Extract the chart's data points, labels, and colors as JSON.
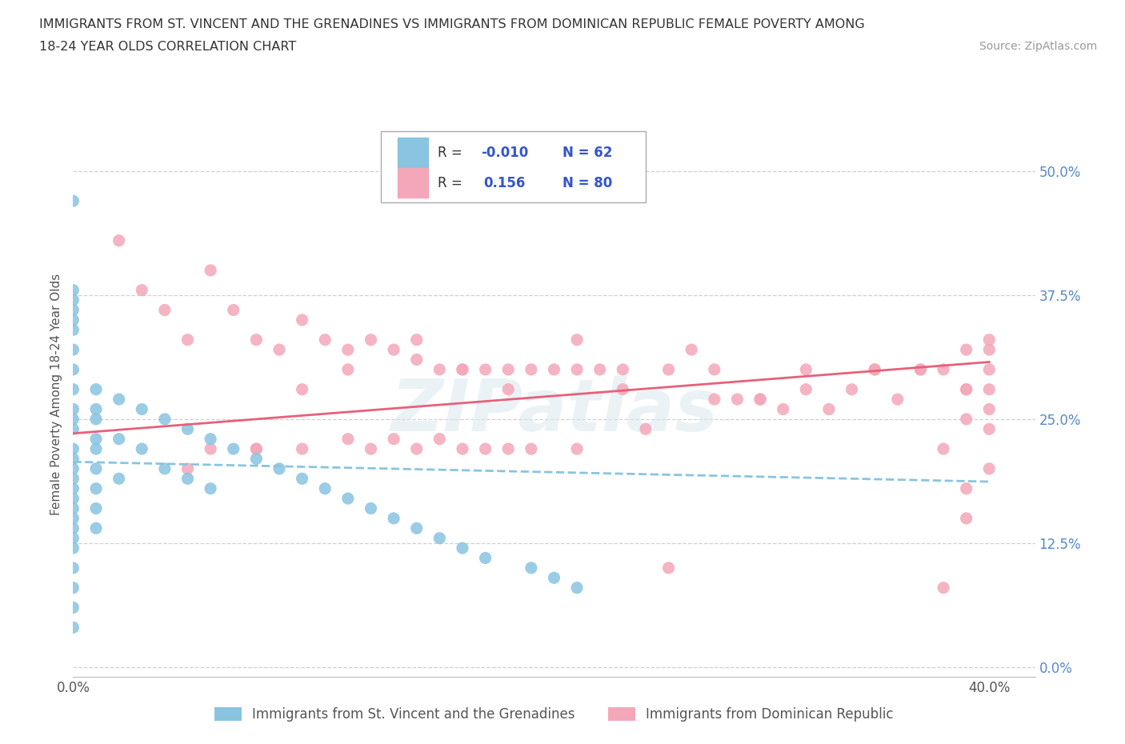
{
  "title_line1": "IMMIGRANTS FROM ST. VINCENT AND THE GRENADINES VS IMMIGRANTS FROM DOMINICAN REPUBLIC FEMALE POVERTY AMONG",
  "title_line2": "18-24 YEAR OLDS CORRELATION CHART",
  "source": "Source: ZipAtlas.com",
  "ylabel": "Female Poverty Among 18-24 Year Olds",
  "xlim": [
    0.0,
    0.42
  ],
  "ylim": [
    -0.01,
    0.56
  ],
  "ytick_positions": [
    0.0,
    0.125,
    0.25,
    0.375,
    0.5
  ],
  "yticklabels": [
    "0.0%",
    "12.5%",
    "25.0%",
    "37.5%",
    "50.0%"
  ],
  "xtick_positions": [
    0.0,
    0.4
  ],
  "xticklabels": [
    "0.0%",
    "40.0%"
  ],
  "watermark": "ZIPatlas",
  "color_blue": "#89c4e1",
  "color_pink": "#f4a7b9",
  "color_blue_line": "#89c4e1",
  "color_pink_line": "#e8607a",
  "grid_color": "#d0d0d0",
  "background_color": "#ffffff",
  "series1_label": "Immigrants from St. Vincent and the Grenadines",
  "series2_label": "Immigrants from Dominican Republic",
  "sv_x": [
    0.0,
    0.0,
    0.0,
    0.0,
    0.0,
    0.0,
    0.0,
    0.0,
    0.0,
    0.0,
    0.0,
    0.0,
    0.0,
    0.0,
    0.0,
    0.0,
    0.0,
    0.0,
    0.0,
    0.0,
    0.0,
    0.0,
    0.0,
    0.0,
    0.0,
    0.0,
    0.0,
    0.01,
    0.01,
    0.01,
    0.01,
    0.01,
    0.01,
    0.01,
    0.01,
    0.01,
    0.02,
    0.02,
    0.02,
    0.03,
    0.03,
    0.04,
    0.04,
    0.05,
    0.05,
    0.06,
    0.06,
    0.07,
    0.08,
    0.09,
    0.1,
    0.11,
    0.12,
    0.13,
    0.14,
    0.15,
    0.16,
    0.17,
    0.18,
    0.2,
    0.21,
    0.22
  ],
  "sv_y": [
    0.47,
    0.38,
    0.37,
    0.36,
    0.35,
    0.34,
    0.32,
    0.3,
    0.28,
    0.26,
    0.25,
    0.24,
    0.22,
    0.21,
    0.2,
    0.19,
    0.18,
    0.17,
    0.16,
    0.15,
    0.14,
    0.13,
    0.12,
    0.1,
    0.08,
    0.06,
    0.04,
    0.28,
    0.26,
    0.25,
    0.23,
    0.22,
    0.2,
    0.18,
    0.16,
    0.14,
    0.27,
    0.23,
    0.19,
    0.26,
    0.22,
    0.25,
    0.2,
    0.24,
    0.19,
    0.23,
    0.18,
    0.22,
    0.21,
    0.2,
    0.19,
    0.18,
    0.17,
    0.16,
    0.15,
    0.14,
    0.13,
    0.12,
    0.11,
    0.1,
    0.09,
    0.08
  ],
  "dr_x": [
    0.02,
    0.03,
    0.04,
    0.05,
    0.06,
    0.06,
    0.07,
    0.08,
    0.08,
    0.09,
    0.1,
    0.1,
    0.11,
    0.12,
    0.12,
    0.13,
    0.13,
    0.14,
    0.14,
    0.15,
    0.15,
    0.16,
    0.16,
    0.17,
    0.17,
    0.18,
    0.18,
    0.19,
    0.19,
    0.2,
    0.2,
    0.21,
    0.22,
    0.22,
    0.23,
    0.24,
    0.25,
    0.26,
    0.27,
    0.28,
    0.29,
    0.3,
    0.31,
    0.32,
    0.33,
    0.34,
    0.35,
    0.36,
    0.37,
    0.38,
    0.38,
    0.38,
    0.39,
    0.39,
    0.39,
    0.39,
    0.4,
    0.4,
    0.4,
    0.4,
    0.4,
    0.4,
    0.05,
    0.08,
    0.1,
    0.12,
    0.15,
    0.17,
    0.19,
    0.22,
    0.24,
    0.26,
    0.28,
    0.3,
    0.32,
    0.35,
    0.37,
    0.39,
    0.39,
    0.4
  ],
  "dr_y": [
    0.43,
    0.38,
    0.36,
    0.33,
    0.4,
    0.22,
    0.36,
    0.33,
    0.22,
    0.32,
    0.35,
    0.22,
    0.33,
    0.32,
    0.23,
    0.33,
    0.22,
    0.32,
    0.23,
    0.31,
    0.22,
    0.3,
    0.23,
    0.3,
    0.22,
    0.3,
    0.22,
    0.3,
    0.22,
    0.3,
    0.22,
    0.3,
    0.3,
    0.22,
    0.3,
    0.3,
    0.24,
    0.1,
    0.32,
    0.3,
    0.27,
    0.27,
    0.26,
    0.28,
    0.26,
    0.28,
    0.3,
    0.27,
    0.3,
    0.3,
    0.22,
    0.08,
    0.32,
    0.28,
    0.25,
    0.18,
    0.32,
    0.3,
    0.28,
    0.26,
    0.24,
    0.2,
    0.2,
    0.22,
    0.28,
    0.3,
    0.33,
    0.3,
    0.28,
    0.33,
    0.28,
    0.3,
    0.27,
    0.27,
    0.3,
    0.3,
    0.3,
    0.28,
    0.15,
    0.33
  ]
}
